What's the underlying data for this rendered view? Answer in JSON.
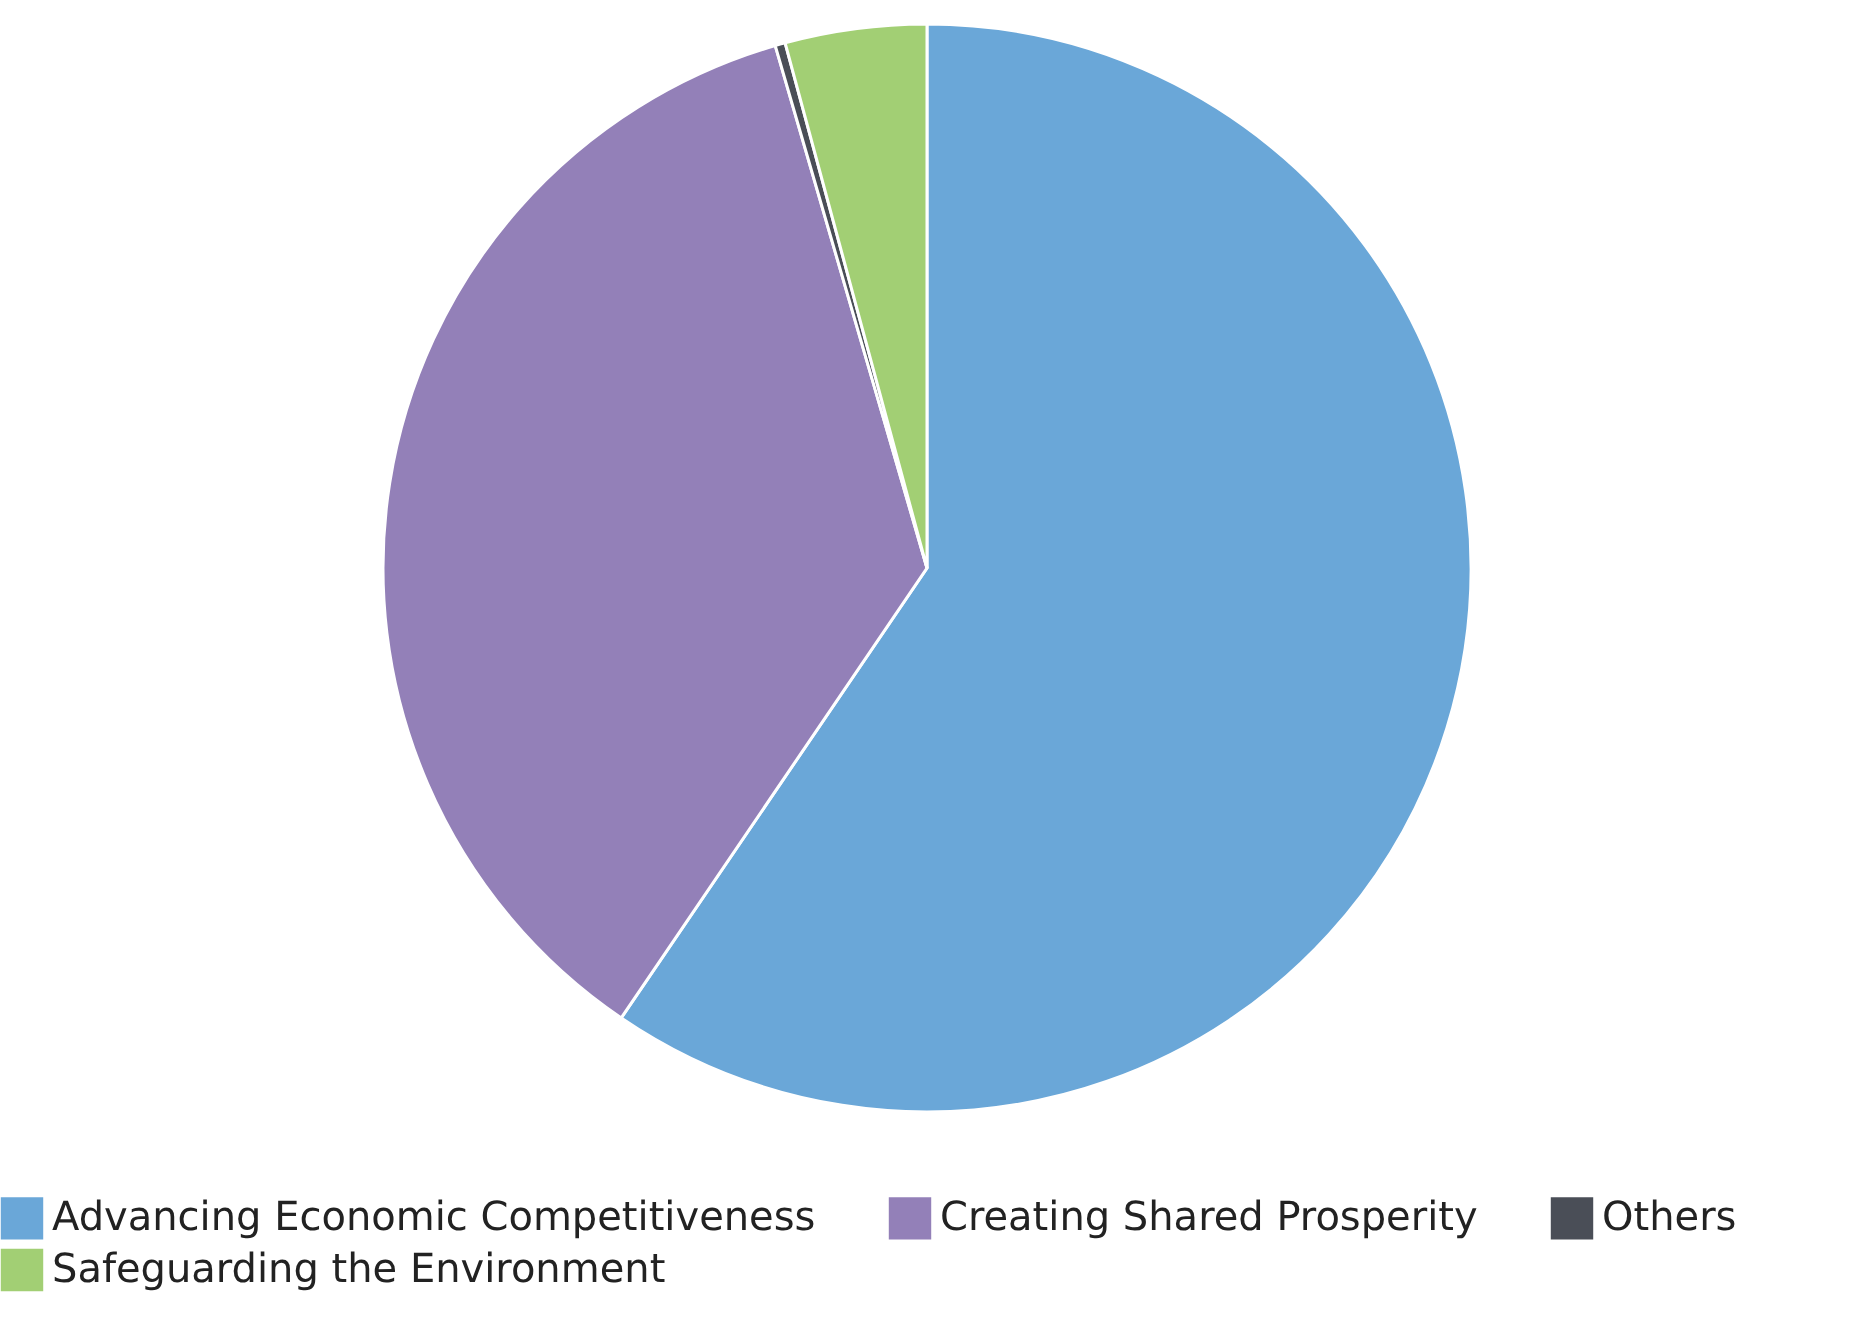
{
  "chart_data": {
    "type": "pie",
    "categories": [
      "Advancing Economic Competitiveness",
      "Creating Shared Prosperity",
      "Others",
      "Safeguarding the Environment"
    ],
    "values": [
      59.5,
      36.0,
      0.3,
      4.2
    ],
    "colors": [
      "#6aa7d8",
      "#9380b8",
      "#4a4e57",
      "#a2cf74"
    ],
    "legend": "bottom"
  }
}
